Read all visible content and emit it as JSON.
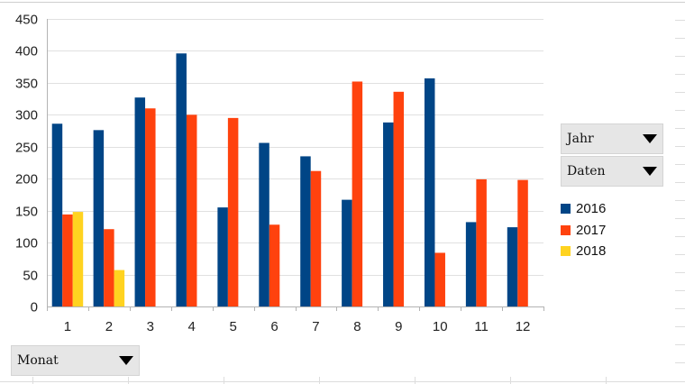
{
  "chart_data": {
    "type": "bar",
    "categories": [
      "1",
      "2",
      "3",
      "4",
      "5",
      "6",
      "7",
      "8",
      "9",
      "10",
      "11",
      "12"
    ],
    "series": [
      {
        "name": "2016",
        "color": "#004586",
        "values": [
          286,
          276,
          327,
          396,
          155,
          256,
          235,
          167,
          288,
          357,
          132,
          124
        ]
      },
      {
        "name": "2017",
        "color": "#ff420e",
        "values": [
          144,
          121,
          310,
          300,
          295,
          128,
          212,
          352,
          336,
          84,
          199,
          198
        ]
      },
      {
        "name": "2018",
        "color": "#ffd320",
        "values": [
          148,
          57,
          null,
          null,
          null,
          null,
          null,
          null,
          null,
          null,
          null,
          null
        ]
      }
    ],
    "ylim": [
      0,
      450
    ],
    "yticks": [
      "0",
      "50",
      "100",
      "150",
      "200",
      "250",
      "300",
      "350",
      "400",
      "450"
    ],
    "grid": true,
    "legend": "right"
  },
  "fields": {
    "year_label": "Jahr",
    "data_label": "Daten",
    "month_label": "Monat"
  }
}
